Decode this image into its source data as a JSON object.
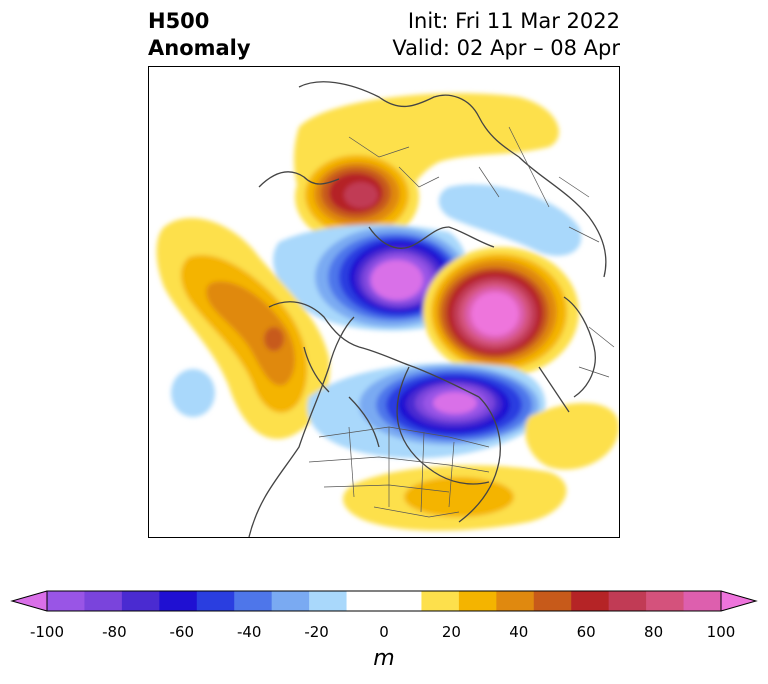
{
  "header": {
    "title_line1": "H500",
    "title_line2": "Anomaly",
    "init_text": "Init: Fri 11 Mar 2022",
    "valid_text": "Valid: 02 Apr – 08 Apr"
  },
  "map": {
    "projection": "polar stereographic, North America centered",
    "field": "500 hPa geopotential height anomaly",
    "features": [
      {
        "label": "positive anomaly centre over Alaska / Bering Strait",
        "value_m": 60
      },
      {
        "label": "negative anomaly centre over the Arctic / Beaufort Sea",
        "value_m": -100
      },
      {
        "label": "positive anomaly centre over northern Eurasia",
        "value_m": 100
      },
      {
        "label": "negative anomaly centre near Hudson Bay / Labrador",
        "value_m": -90
      },
      {
        "label": "positive anomaly band over the North Pacific",
        "value_m": 50
      },
      {
        "label": "positive anomaly over the southeastern US / western Atlantic",
        "value_m": 30
      }
    ]
  },
  "colorbar": {
    "unit": "m",
    "min": -100,
    "max": 100,
    "step": 10,
    "extend": "both",
    "colors": [
      "#9955e6",
      "#7a44dc",
      "#4a2bd1",
      "#1f10d2",
      "#2a3ee0",
      "#4e76ea",
      "#7aaaf2",
      "#a9d8fb",
      "#ffffff",
      "#ffffff",
      "#fde04c",
      "#f4b400",
      "#e0890f",
      "#c75a1a",
      "#b52426",
      "#c13b55",
      "#d4527c",
      "#dd5fae"
    ],
    "under_color": "#d96fe8",
    "over_color": "#ee74dc",
    "tick_labels": [
      "-100",
      "-80",
      "-60",
      "-40",
      "-20",
      "0",
      "20",
      "40",
      "60",
      "80",
      "100"
    ]
  }
}
